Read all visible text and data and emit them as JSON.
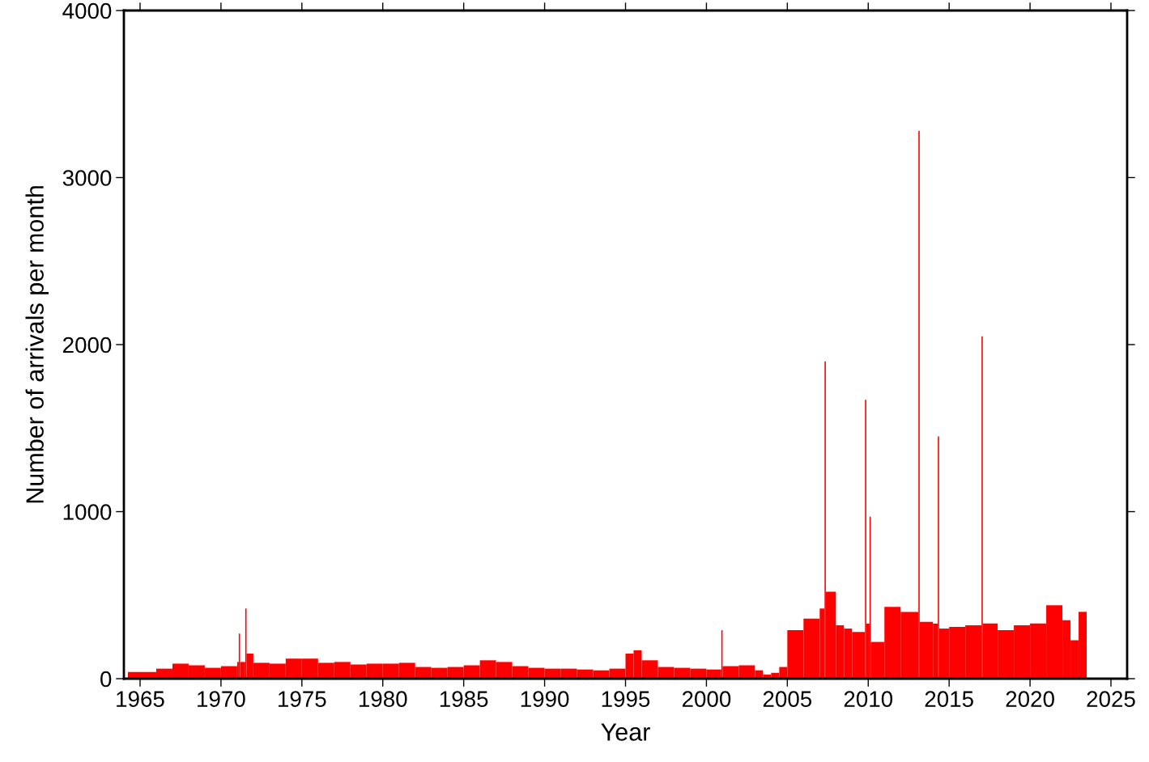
{
  "chart_data": {
    "type": "histogram",
    "xlabel": "Year",
    "ylabel": "Number of arrivals per month",
    "color": "#ff0000",
    "bins": [
      1964.25,
      1965,
      1966,
      1967,
      1968,
      1969,
      1970,
      1971,
      1971.1,
      1971.18,
      1971.5,
      1971.58,
      1972,
      1973,
      1974,
      1975,
      1976,
      1977,
      1978,
      1979,
      1980,
      1981,
      1982,
      1983,
      1984,
      1985,
      1986,
      1987,
      1988,
      1989,
      1990,
      1991,
      1992,
      1993,
      1994,
      1995,
      1995.5,
      1996,
      1997,
      1998,
      1999,
      2000,
      2000.92,
      2001,
      2002,
      2003,
      2003.5,
      2004,
      2004.5,
      2005,
      2006,
      2007,
      2007.3,
      2007.38,
      2008,
      2008.5,
      2009,
      2009.8,
      2009.88,
      2010.08,
      2010.16,
      2011,
      2012,
      2013.1,
      2013.18,
      2014,
      2014.3,
      2014.38,
      2015,
      2016,
      2017,
      2017.08,
      2018,
      2019,
      2020,
      2021,
      2022,
      2022.5,
      2023,
      2023.5
    ],
    "values": [
      40,
      40,
      60,
      90,
      80,
      65,
      75,
      100,
      270,
      100,
      420,
      150,
      95,
      90,
      120,
      120,
      95,
      100,
      85,
      90,
      90,
      95,
      70,
      65,
      70,
      80,
      110,
      100,
      75,
      65,
      60,
      60,
      55,
      50,
      60,
      150,
      170,
      110,
      70,
      65,
      60,
      55,
      290,
      75,
      80,
      50,
      25,
      35,
      70,
      290,
      360,
      420,
      1900,
      520,
      320,
      300,
      280,
      1670,
      330,
      970,
      220,
      430,
      400,
      3280,
      340,
      330,
      1450,
      300,
      310,
      320,
      2050,
      330,
      290,
      320,
      330,
      440,
      350,
      230,
      400
    ],
    "xlim": [
      1964,
      2026
    ],
    "xticks": [
      1965,
      1970,
      1975,
      1980,
      1985,
      1990,
      1995,
      2000,
      2005,
      2010,
      2015,
      2020,
      2025
    ],
    "ylim": [
      0,
      4000
    ],
    "yticks": [
      0,
      1000,
      2000,
      3000,
      4000
    ],
    "grid": false
  }
}
